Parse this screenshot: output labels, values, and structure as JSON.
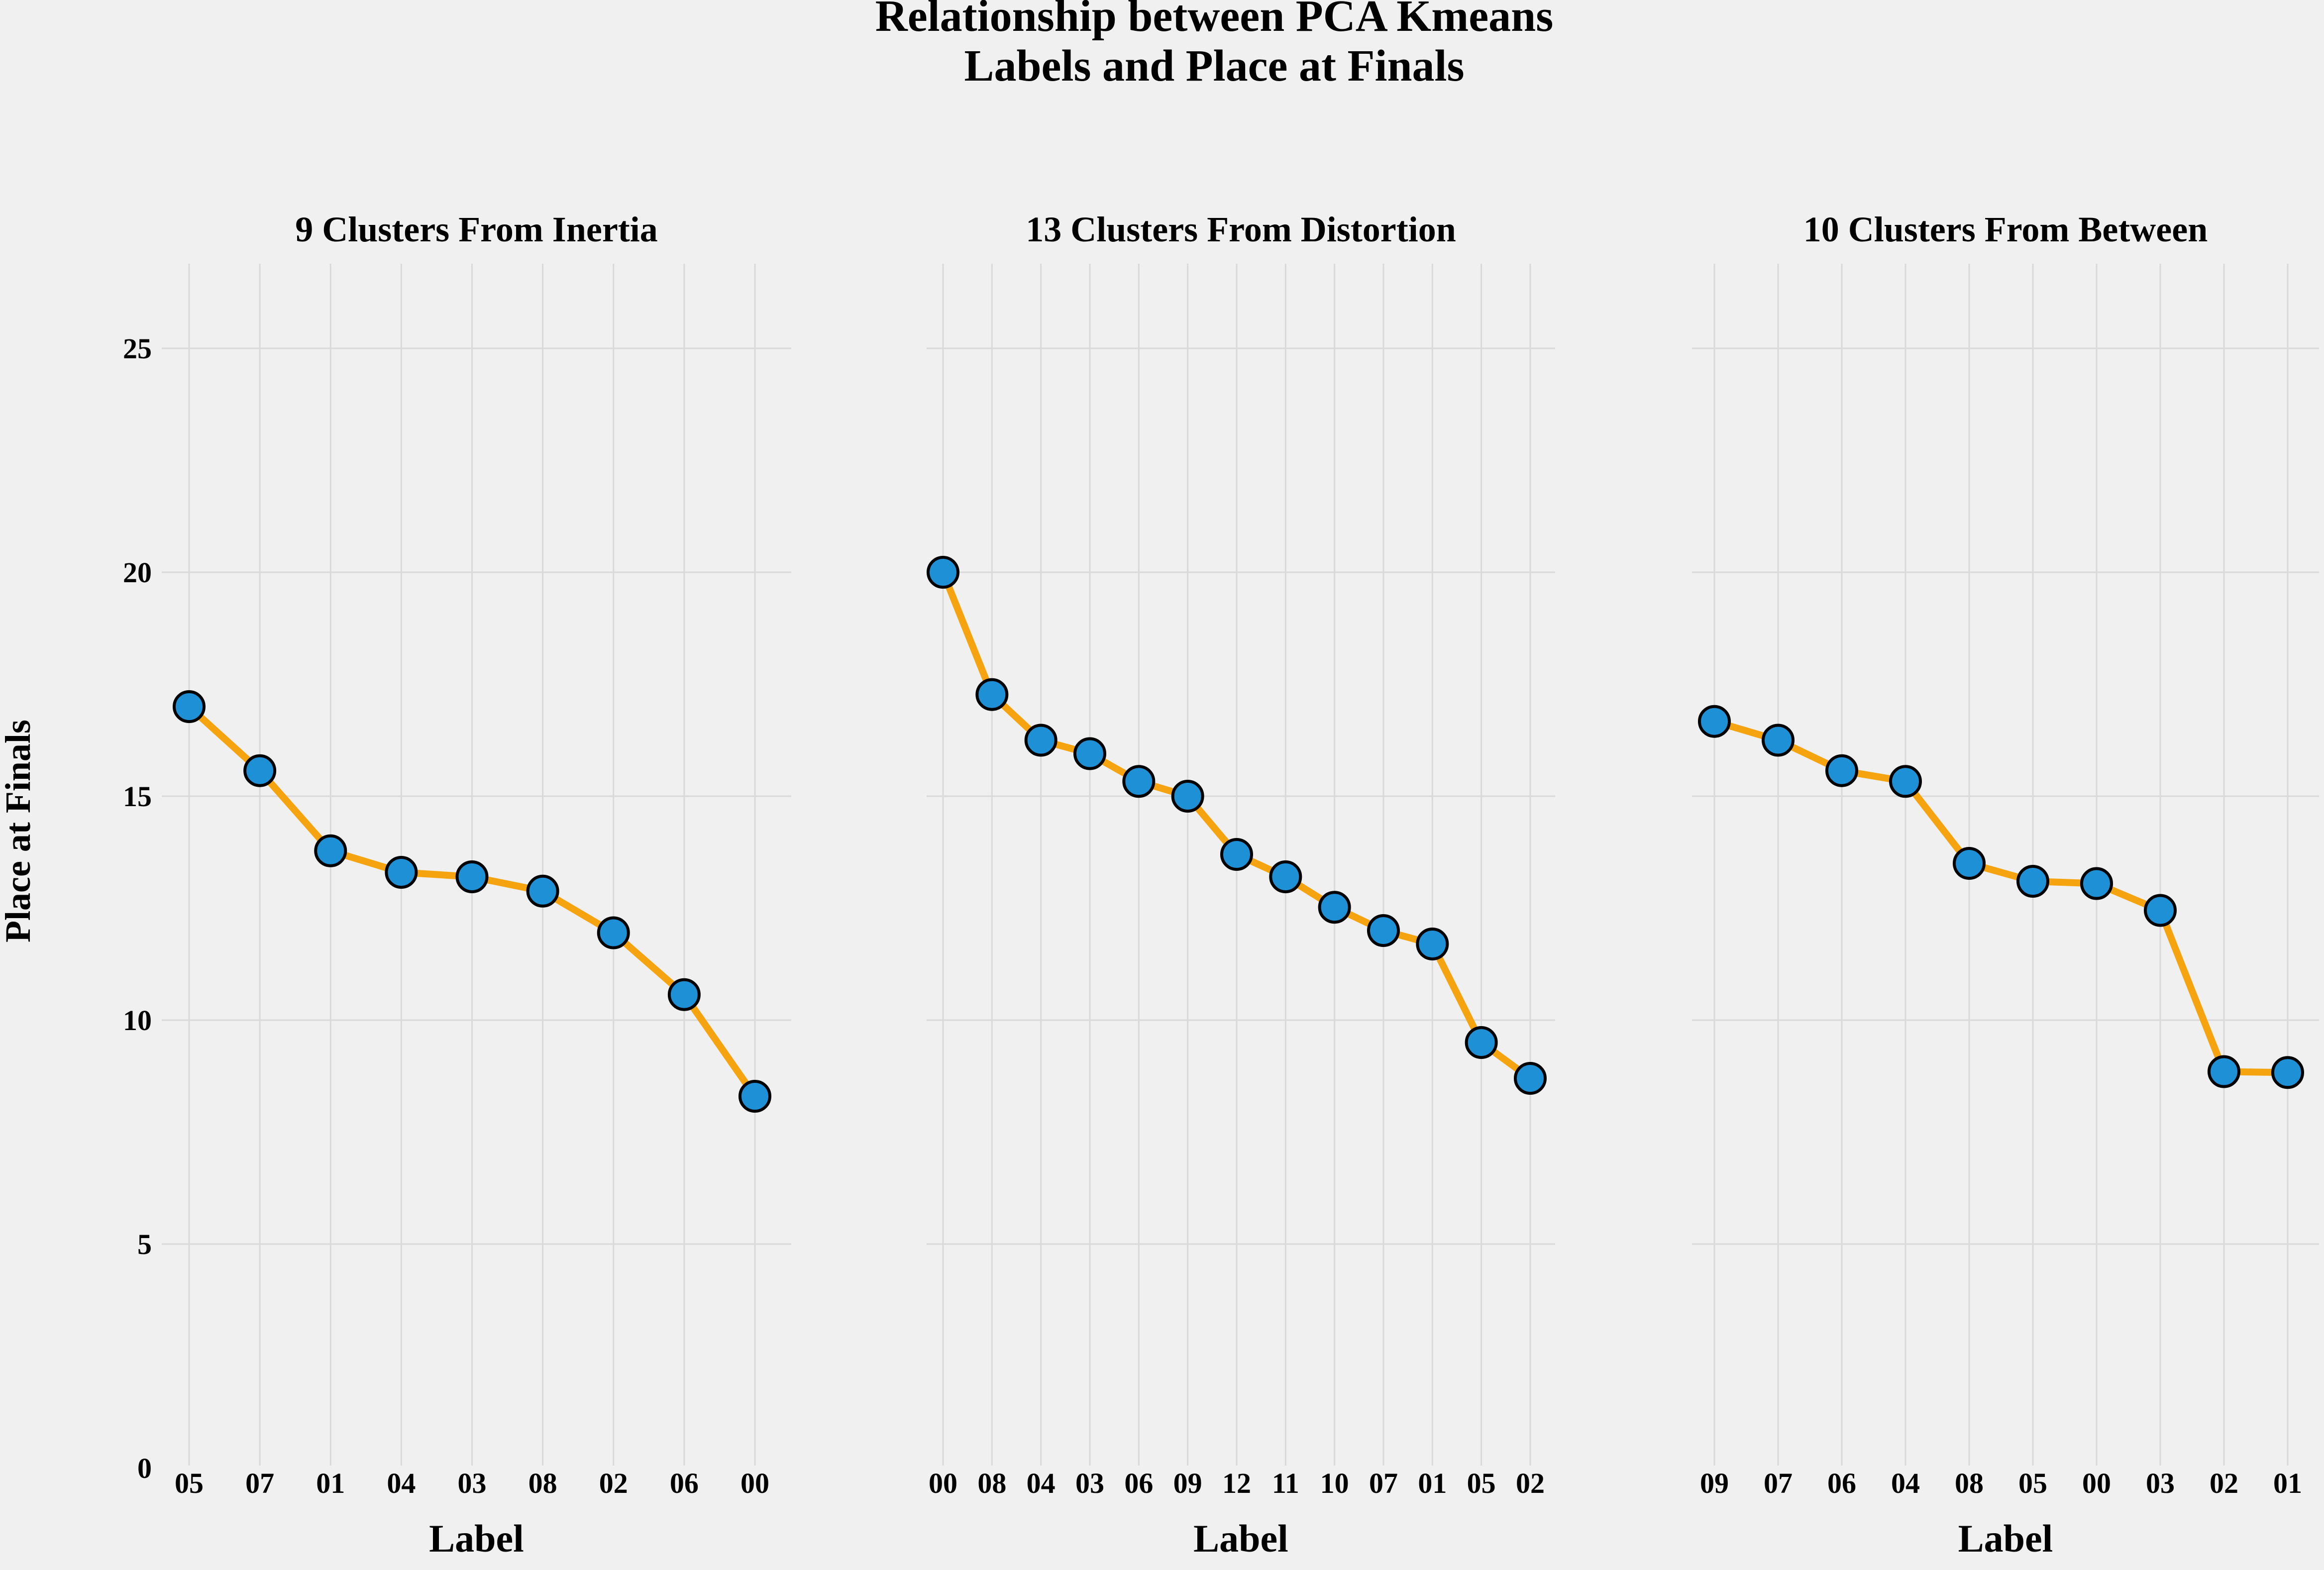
{
  "figure": {
    "title_line1": "Relationship between PCA Kmeans",
    "title_line2": "Labels and Place at Finals",
    "ylabel": "Place at Finals"
  },
  "colors": {
    "background": "#f0f0f0",
    "line": "#f5a30f",
    "marker_fill": "#1e90d6",
    "marker_edge": "#000000",
    "grid": "#d9d9d9"
  },
  "chart_data": [
    {
      "type": "line",
      "title": "9 Clusters From Inertia",
      "xlabel": "Label",
      "ylabel": "Place at Finals",
      "ylim": [
        0,
        27
      ],
      "yticks": [
        0,
        5,
        10,
        15,
        20,
        25
      ],
      "grid": true,
      "categories": [
        "05",
        "07",
        "01",
        "04",
        "03",
        "08",
        "02",
        "06",
        "00"
      ],
      "values": [
        17.0,
        15.57,
        13.78,
        13.3,
        13.2,
        12.88,
        11.95,
        10.57,
        8.3
      ]
    },
    {
      "type": "line",
      "title": "13 Clusters From Distortion",
      "xlabel": "Label",
      "ylabel": "",
      "ylim": [
        0,
        27
      ],
      "yticks": [
        0,
        5,
        10,
        15,
        20,
        25
      ],
      "grid": true,
      "categories": [
        "00",
        "08",
        "04",
        "03",
        "06",
        "09",
        "12",
        "11",
        "10",
        "07",
        "01",
        "05",
        "02"
      ],
      "values": [
        20.0,
        17.27,
        16.25,
        15.95,
        15.33,
        15.0,
        13.7,
        13.2,
        12.52,
        12.0,
        11.7,
        9.5,
        8.7
      ]
    },
    {
      "type": "line",
      "title": "10 Clusters From Between",
      "xlabel": "Label",
      "ylabel": "",
      "ylim": [
        0,
        27
      ],
      "yticks": [
        0,
        5,
        10,
        15,
        20,
        25
      ],
      "grid": true,
      "categories": [
        "09",
        "07",
        "06",
        "04",
        "08",
        "05",
        "00",
        "03",
        "02",
        "01"
      ],
      "values": [
        16.67,
        16.25,
        15.57,
        15.33,
        13.5,
        13.1,
        13.05,
        12.45,
        8.85,
        8.83
      ]
    }
  ]
}
